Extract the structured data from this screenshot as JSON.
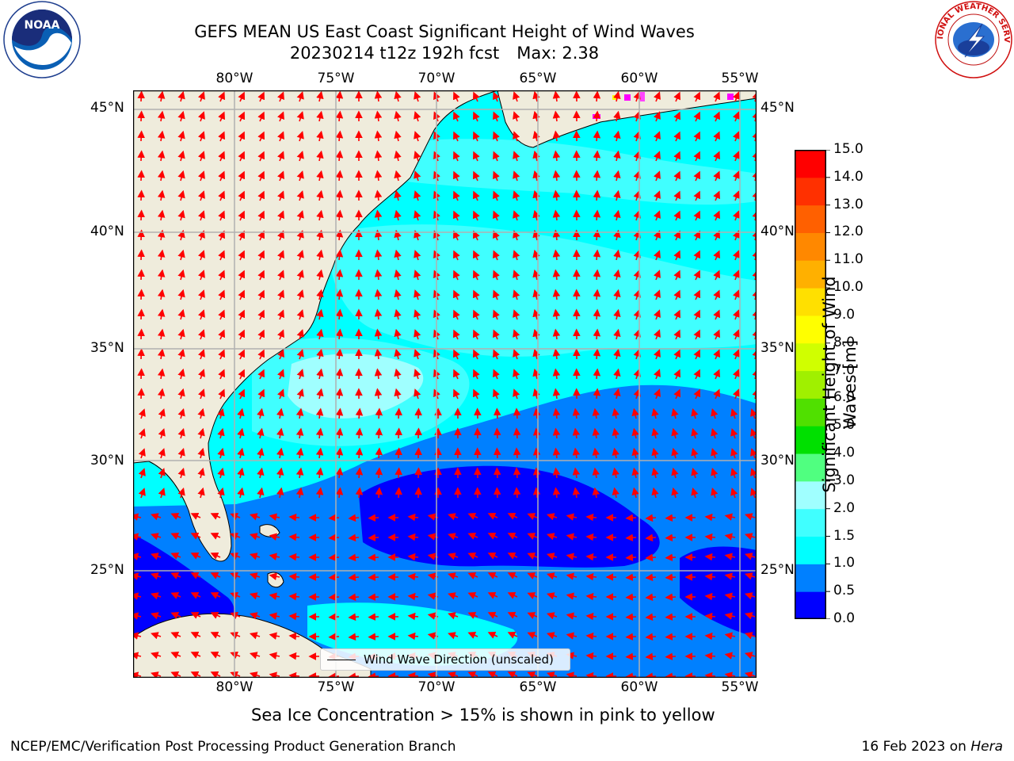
{
  "title": {
    "line1": "GEFS MEAN US East Coast Significant Height of Wind Waves",
    "line2_run": "20230214 t12z 192h fcst",
    "line2_max": "Max: 2.38"
  },
  "map": {
    "lon_labels": [
      "80°W",
      "75°W",
      "70°W",
      "65°W",
      "60°W",
      "55°W"
    ],
    "lat_labels": [
      "45°N",
      "40°N",
      "35°N",
      "30°N",
      "25°N"
    ],
    "legend_text": "Wind Wave Direction (unscaled)",
    "arrow_color": "#ff0000",
    "land_color": "#efecdc"
  },
  "colorbar": {
    "label": "Significant Height of Wind Waves [m]",
    "ticks": [
      "15.0",
      "14.0",
      "13.0",
      "12.0",
      "11.0",
      "10.0",
      "9.0",
      "8.0",
      "7.0",
      "6.0",
      "5.0",
      "4.0",
      "3.0",
      "2.0",
      "1.5",
      "1.0",
      "0.5",
      "0.0"
    ],
    "colors_bottom_to_top": [
      "#0000ff",
      "#0080ff",
      "#00ffff",
      "#40ffff",
      "#a0ffff",
      "#50ff80",
      "#00e000",
      "#50e000",
      "#a0f000",
      "#d0ff00",
      "#ffff00",
      "#ffe000",
      "#ffb000",
      "#ff8800",
      "#ff6000",
      "#ff3000",
      "#ff0000"
    ]
  },
  "caption": "Sea Ice Concentration > 15% is shown in pink to yellow",
  "footer": {
    "left": "NCEP/EMC/Verification Post Processing Product Generation Branch",
    "date": "16 Feb 2023 on",
    "machine": "Hera"
  },
  "logos": {
    "noaa_text": "NOAA",
    "nws_text": "NATIONAL WEATHER SERVICE"
  }
}
